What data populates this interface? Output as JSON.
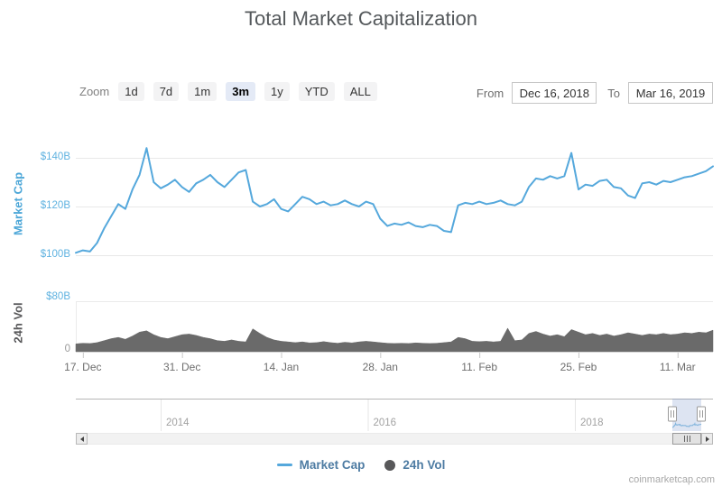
{
  "title": "Total Market Capitalization",
  "toolbar": {
    "zoom_label": "Zoom",
    "buttons": [
      "1d",
      "7d",
      "1m",
      "3m",
      "1y",
      "YTD",
      "ALL"
    ],
    "selected_zoom": "3m",
    "from_label": "From",
    "from_value": "Dec 16, 2018",
    "to_label": "To",
    "to_value": "Mar 16, 2019"
  },
  "chart_data": {
    "type": "line",
    "x_start_label": "Dec 16, 2018",
    "x_end_label": "Mar 16, 2019",
    "x_unit": "day",
    "x_range_days": 90,
    "x_ticks": [
      {
        "day": 1,
        "label": "17. Dec"
      },
      {
        "day": 15,
        "label": "31. Dec"
      },
      {
        "day": 29,
        "label": "14. Jan"
      },
      {
        "day": 43,
        "label": "28. Jan"
      },
      {
        "day": 57,
        "label": "11. Feb"
      },
      {
        "day": 71,
        "label": "25. Feb"
      },
      {
        "day": 85,
        "label": "11. Mar"
      }
    ],
    "marketcap_axis": {
      "title": "Market Cap",
      "title_color": "#4da7d8",
      "min": 95,
      "max": 148,
      "ticks": [
        {
          "value": 100,
          "label": "$100B",
          "color": "#5fb2e0"
        },
        {
          "value": 120,
          "label": "$120B",
          "color": "#5fb2e0"
        },
        {
          "value": 140,
          "label": "$140B",
          "color": "#5fb2e0"
        }
      ],
      "grid": true
    },
    "vol_axis": {
      "title": "24h Vol",
      "title_color": "#58585a",
      "min": 0,
      "max": 80,
      "ticks": [
        {
          "value": 80,
          "label": "$80B",
          "color": "#5fb2e0"
        },
        {
          "value": 0,
          "label": "0",
          "color": "#999999"
        }
      ],
      "grid": false
    },
    "series": [
      {
        "name": "Market Cap",
        "type": "line",
        "unit": "$B",
        "color": "#55a8dc",
        "values": [
          101,
          102,
          101.5,
          105,
          111,
          116,
          121,
          119,
          127,
          133,
          144,
          130,
          127.5,
          129,
          131,
          128,
          126,
          129.5,
          131,
          133,
          130,
          128,
          131,
          134,
          135,
          122,
          120,
          121,
          123,
          119,
          118,
          121,
          124,
          123,
          121,
          122,
          120.5,
          121,
          122.5,
          121,
          120,
          122,
          121,
          115,
          112,
          113,
          112.5,
          113.5,
          112,
          111.5,
          112.5,
          112,
          110,
          109.5,
          120.5,
          121.5,
          121,
          122,
          121,
          121.5,
          122.5,
          121,
          120.5,
          122,
          128,
          131.5,
          131,
          132.5,
          131.5,
          132.5,
          142,
          127,
          129,
          128.5,
          130.5,
          131,
          128,
          127.5,
          124.5,
          123.5,
          129.5,
          130,
          129,
          130.5,
          130,
          131,
          132,
          132.5,
          133.5,
          134.5,
          136.5
        ]
      },
      {
        "name": "24h Vol",
        "type": "area",
        "unit": "$B",
        "color": "#6a6a6a",
        "values": [
          12,
          13,
          12.5,
          14,
          17,
          20,
          22,
          19,
          24,
          30,
          32,
          26,
          22,
          20,
          23,
          26,
          27,
          25,
          22,
          20,
          17,
          16,
          18,
          16,
          15,
          35,
          28,
          22,
          18,
          16,
          15,
          14,
          15,
          13.5,
          14,
          15.5,
          14,
          13,
          14.5,
          13.5,
          15,
          16,
          15,
          14,
          13,
          12.5,
          13,
          12.5,
          13.5,
          13,
          12.5,
          13,
          14,
          15,
          22,
          20,
          16,
          15.5,
          16,
          15,
          16,
          36,
          17,
          18,
          28,
          31,
          27,
          24,
          26,
          23,
          34,
          30,
          26,
          28,
          25,
          27,
          24,
          26,
          29,
          27,
          25,
          27,
          26,
          28,
          26,
          27,
          29,
          28,
          30,
          29,
          33
        ]
      }
    ],
    "navigator": {
      "year_ticks": [
        {
          "label": "2014"
        },
        {
          "label": "2016"
        },
        {
          "label": "2018"
        }
      ],
      "selection_from": "Dec 16, 2018",
      "selection_to": "Mar 16, 2019",
      "mask_color": "rgba(102,133,194,0.22)"
    }
  },
  "legend": {
    "items": [
      {
        "label": "Market Cap",
        "symbol": "line",
        "color": "#55a8dc"
      },
      {
        "label": "24h Vol",
        "symbol": "dot",
        "color": "#58585a"
      }
    ]
  },
  "credit": "coinmarketcap.com"
}
